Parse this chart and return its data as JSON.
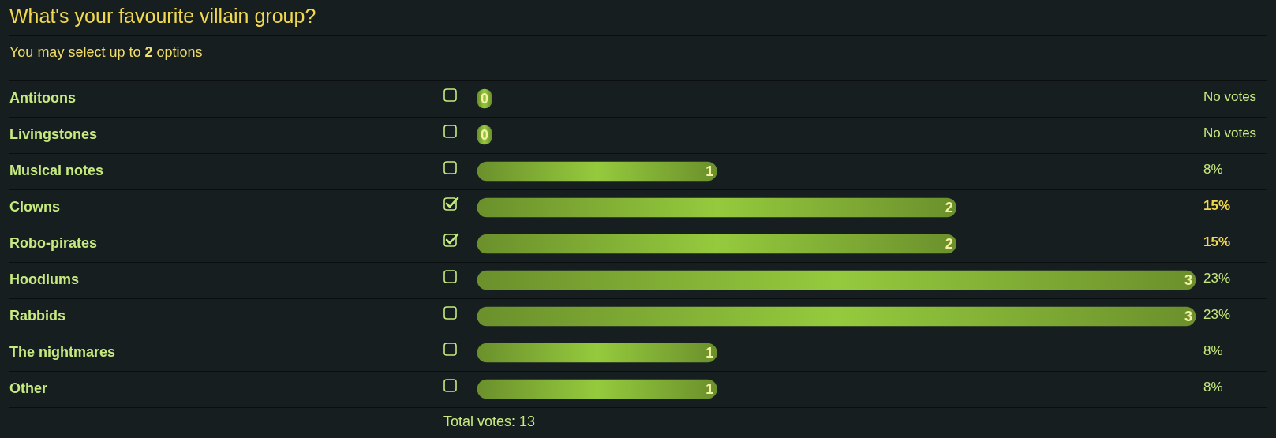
{
  "chart_data": {
    "type": "bar",
    "title": "What's your favourite villain group?",
    "subtitle": "You may select up to 2 options",
    "orientation": "horizontal",
    "categories": [
      "Antitoons",
      "Livingstones",
      "Musical notes",
      "Clowns",
      "Robo-pirates",
      "Hoodlums",
      "Rabbids",
      "The nightmares",
      "Other"
    ],
    "values": [
      0,
      0,
      1,
      2,
      2,
      3,
      3,
      1,
      1
    ],
    "color": "#7ca833",
    "xlim": [
      0,
      3
    ],
    "data_labels": true,
    "grid": "y",
    "tick_labels": "y",
    "annotations": [
      "No votes",
      "No votes",
      "8%",
      "15%",
      "15%",
      "23%",
      "23%",
      "8%",
      "8%",
      "Total votes: 13"
    ]
  }
}
